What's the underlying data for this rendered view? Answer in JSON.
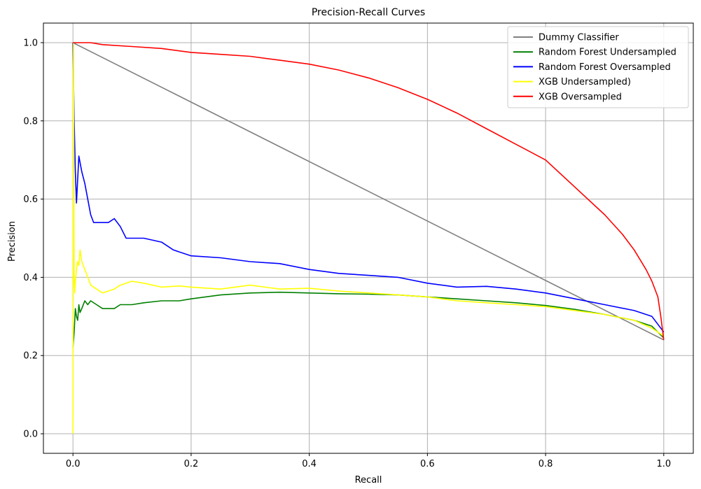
{
  "chart_data": {
    "type": "line",
    "title": "Precision-Recall Curves",
    "xlabel": "Recall",
    "ylabel": "Precision",
    "xlim": [
      -0.05,
      1.05
    ],
    "ylim": [
      -0.05,
      1.05
    ],
    "xticks": [
      0.0,
      0.2,
      0.4,
      0.6,
      0.8,
      1.0
    ],
    "xtick_labels": [
      "0.0",
      "0.2",
      "0.4",
      "0.6",
      "0.8",
      "1.0"
    ],
    "yticks": [
      0.0,
      0.2,
      0.4,
      0.6,
      0.8,
      1.0
    ],
    "ytick_labels": [
      "0.0",
      "0.2",
      "0.4",
      "0.6",
      "0.8",
      "1.0"
    ],
    "grid": true,
    "legend_position": "top-right",
    "series": [
      {
        "name": "Dummy Classifier",
        "color": "#808080",
        "x": [
          0.0,
          1.0
        ],
        "y": [
          1.0,
          0.24
        ]
      },
      {
        "name": "Random Forest Undersampled",
        "color": "#008000",
        "x": [
          0.0,
          0.002,
          0.004,
          0.006,
          0.008,
          0.01,
          0.012,
          0.015,
          0.02,
          0.025,
          0.03,
          0.04,
          0.05,
          0.06,
          0.07,
          0.08,
          0.1,
          0.12,
          0.15,
          0.18,
          0.2,
          0.25,
          0.3,
          0.35,
          0.4,
          0.45,
          0.5,
          0.55,
          0.6,
          0.65,
          0.7,
          0.75,
          0.8,
          0.85,
          0.9,
          0.95,
          0.98,
          1.0
        ],
        "y": [
          0.22,
          0.26,
          0.32,
          0.3,
          0.29,
          0.33,
          0.31,
          0.32,
          0.34,
          0.33,
          0.34,
          0.33,
          0.32,
          0.32,
          0.32,
          0.33,
          0.33,
          0.335,
          0.34,
          0.34,
          0.345,
          0.355,
          0.36,
          0.362,
          0.36,
          0.358,
          0.357,
          0.355,
          0.35,
          0.345,
          0.34,
          0.335,
          0.328,
          0.318,
          0.305,
          0.29,
          0.275,
          0.245
        ]
      },
      {
        "name": "Random Forest Oversampled",
        "color": "#0000ff",
        "x": [
          0.0,
          0.002,
          0.004,
          0.006,
          0.01,
          0.015,
          0.02,
          0.025,
          0.03,
          0.035,
          0.04,
          0.05,
          0.06,
          0.07,
          0.08,
          0.09,
          0.1,
          0.12,
          0.15,
          0.17,
          0.2,
          0.25,
          0.3,
          0.35,
          0.4,
          0.45,
          0.5,
          0.55,
          0.6,
          0.65,
          0.7,
          0.75,
          0.8,
          0.85,
          0.9,
          0.95,
          0.98,
          1.0
        ],
        "y": [
          1.0,
          0.8,
          0.67,
          0.59,
          0.71,
          0.67,
          0.64,
          0.6,
          0.56,
          0.54,
          0.54,
          0.54,
          0.54,
          0.55,
          0.53,
          0.5,
          0.5,
          0.5,
          0.49,
          0.47,
          0.455,
          0.45,
          0.44,
          0.435,
          0.42,
          0.41,
          0.405,
          0.4,
          0.385,
          0.375,
          0.377,
          0.37,
          0.36,
          0.345,
          0.33,
          0.315,
          0.3,
          0.26
        ]
      },
      {
        "name": "XGB Undersampled)",
        "color": "#ffff00",
        "x": [
          0.0,
          0.001,
          0.002,
          0.003,
          0.004,
          0.006,
          0.008,
          0.01,
          0.012,
          0.015,
          0.02,
          0.025,
          0.03,
          0.04,
          0.05,
          0.06,
          0.07,
          0.08,
          0.1,
          0.12,
          0.15,
          0.18,
          0.2,
          0.25,
          0.3,
          0.35,
          0.4,
          0.45,
          0.5,
          0.55,
          0.6,
          0.65,
          0.7,
          0.75,
          0.8,
          0.85,
          0.9,
          0.95,
          0.98,
          1.0
        ],
        "y": [
          0.0,
          1.0,
          0.4,
          0.36,
          0.39,
          0.42,
          0.44,
          0.43,
          0.47,
          0.44,
          0.42,
          0.4,
          0.38,
          0.37,
          0.36,
          0.365,
          0.37,
          0.38,
          0.39,
          0.385,
          0.375,
          0.378,
          0.375,
          0.37,
          0.38,
          0.37,
          0.372,
          0.365,
          0.36,
          0.355,
          0.35,
          0.34,
          0.335,
          0.33,
          0.325,
          0.315,
          0.305,
          0.29,
          0.27,
          0.25
        ]
      },
      {
        "name": "XGB Oversampled",
        "color": "#ff0000",
        "x": [
          0.0,
          0.01,
          0.03,
          0.05,
          0.1,
          0.15,
          0.2,
          0.25,
          0.3,
          0.35,
          0.4,
          0.45,
          0.5,
          0.55,
          0.6,
          0.65,
          0.7,
          0.75,
          0.8,
          0.85,
          0.9,
          0.93,
          0.95,
          0.97,
          0.98,
          0.99,
          0.995,
          1.0
        ],
        "y": [
          1.0,
          1.0,
          1.0,
          0.995,
          0.99,
          0.985,
          0.975,
          0.97,
          0.965,
          0.955,
          0.945,
          0.93,
          0.91,
          0.885,
          0.855,
          0.82,
          0.78,
          0.74,
          0.7,
          0.63,
          0.56,
          0.51,
          0.47,
          0.42,
          0.39,
          0.35,
          0.3,
          0.24
        ]
      }
    ]
  }
}
